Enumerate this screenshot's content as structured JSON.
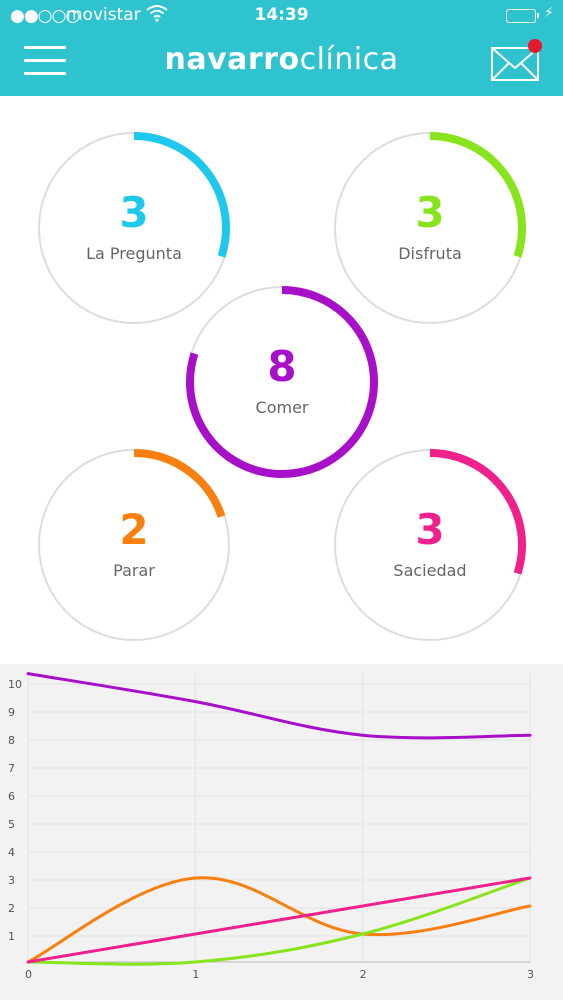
{
  "status_bar": {
    "signal": "●●○○○",
    "carrier": "movistar",
    "time": "14:39",
    "wifi_icon": "wifi-icon",
    "battery_icon": "battery-icon",
    "charging_icon": "bolt-icon"
  },
  "header": {
    "logo_bold": "navarro",
    "logo_light": "clínica",
    "menu_icon": "hamburger-menu-icon",
    "mail_icon": "envelope-icon",
    "background": "#2ec3cf",
    "notification_color": "#e8192c"
  },
  "metrics": [
    {
      "value": "3",
      "label": "La Pregunta",
      "color": "#1ec8ec",
      "progress": 0.3
    },
    {
      "value": "3",
      "label": "Disfruta",
      "color": "#88e41c",
      "progress": 0.3
    },
    {
      "value": "8",
      "label": "Comer",
      "color": "#a80fc8",
      "progress": 0.8
    },
    {
      "value": "2",
      "label": "Parar",
      "color": "#f97f0e",
      "progress": 0.2
    },
    {
      "value": "3",
      "label": "Saciedad",
      "color": "#f0208c",
      "progress": 0.3
    }
  ],
  "chart_data": {
    "type": "line",
    "x": [
      0,
      1,
      2,
      3
    ],
    "xlim": [
      0,
      3
    ],
    "ylim": [
      0,
      10
    ],
    "y_ticks": [
      "10",
      "9",
      "8",
      "7",
      "6",
      "5",
      "4",
      "3",
      "2",
      "1"
    ],
    "x_ticks": [
      "0",
      "1",
      "2",
      "3"
    ],
    "grid": true,
    "series": [
      {
        "color": "#a80fc8",
        "values": [
          10.3,
          9.3,
          8.1,
          8.1
        ]
      },
      {
        "color": "#f97f0e",
        "values": [
          0,
          3.0,
          1.0,
          2.0
        ]
      },
      {
        "color": "#88e41c",
        "values": [
          0,
          0,
          1.0,
          3.0
        ]
      },
      {
        "color": "#f0208c",
        "values": [
          0,
          1.0,
          2.0,
          3.0
        ]
      }
    ]
  }
}
